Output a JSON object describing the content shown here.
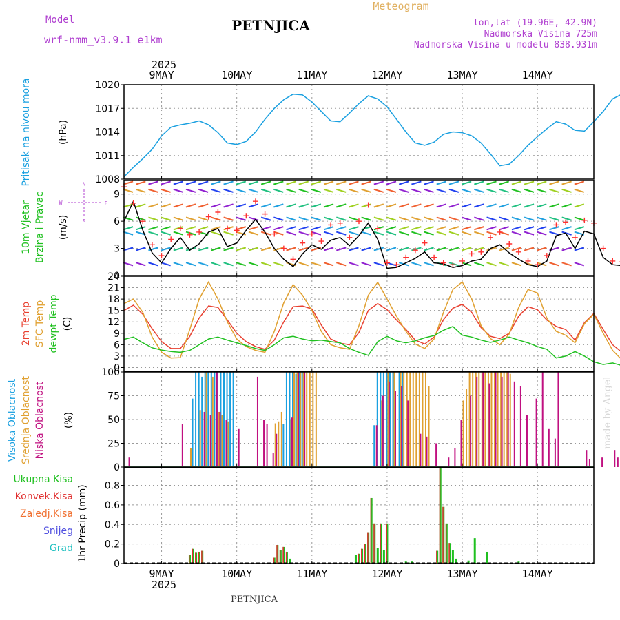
{
  "header": {
    "model_label": "Model",
    "model_name": "wrf-nmm_v3.9.1 e1km",
    "title": "PETNJICA",
    "subtitle": "Meteogram",
    "lonlat": "lon,lat (19.96E, 42.9N)",
    "alt1": "Nadmorska Visina 725m",
    "alt2": "Nadmorska Visina u modelu 838.931m",
    "footer": "PETNJICA",
    "watermark": "made by Angel"
  },
  "colors": {
    "pressure": "#1aa0e0",
    "wind_speed": "#000000",
    "gust": "#ff3030",
    "t2m": "#e84030",
    "sfc": "#e0a030",
    "dewpt": "#20c020",
    "cloud_high": "#1aa0e0",
    "cloud_mid": "#e0a030",
    "cloud_low": "#c01080",
    "rain_total": "#20c020",
    "rain_conv": "#e03030",
    "purple": "#b040d0"
  },
  "dates": {
    "top_year": "2025",
    "bottom_year": "2025",
    "labels": [
      "9MAY",
      "10MAY",
      "11MAY",
      "12MAY",
      "13MAY",
      "14MAY"
    ]
  },
  "compass": {
    "n": "N",
    "s": "S",
    "w": "W",
    "e": "E"
  },
  "chart_data": [
    {
      "type": "line",
      "name": "pressure",
      "ylabel": "Pritisak na nivou mora",
      "unit": "(hPa)",
      "ylim": [
        1008,
        1020
      ],
      "yticks": [
        "1008",
        "1011",
        "1014",
        "1017",
        "1020"
      ],
      "x_start": "2025-05-08 12:00",
      "x_step_hours": 3,
      "series": [
        {
          "values": [
            1008.3,
            1009.5,
            1010.6,
            1011.8,
            1013.5,
            1014.6,
            1014.9,
            1015.1,
            1015.4,
            1014.9,
            1013.9,
            1012.6,
            1012.4,
            1012.8,
            1014.0,
            1015.6,
            1017.0,
            1018.1,
            1018.8,
            1018.7,
            1017.8,
            1016.6,
            1015.4,
            1015.3,
            1016.4,
            1017.6,
            1018.6,
            1018.2,
            1017.2,
            1015.6,
            1014.0,
            1012.6,
            1012.3,
            1012.7,
            1013.7,
            1014.0,
            1013.9,
            1013.5,
            1012.6,
            1011.2,
            1009.7,
            1009.9,
            1011.0,
            1012.3,
            1013.4,
            1014.4,
            1015.3,
            1015.0,
            1014.2,
            1014.1,
            1015.3,
            1016.6,
            1018.2,
            1018.8,
            1019.3,
            1018.4,
            1016.4,
            1014.9
          ]
        }
      ]
    },
    {
      "type": "line",
      "name": "wind",
      "ylabel_lines": [
        "10m Vjetar",
        "Brzina i Pravac"
      ],
      "unit": "(m/s)",
      "ylim": [
        0,
        10.5
      ],
      "yticks": [
        "0",
        "3",
        "6",
        "9"
      ],
      "x_start": "2025-05-08 12:00",
      "x_step_hours": 3,
      "series": [
        {
          "values": [
            6.0,
            8.2,
            5.0,
            2.5,
            1.4,
            3.0,
            4.2,
            2.8,
            3.5,
            4.8,
            5.2,
            3.2,
            3.6,
            5.0,
            6.2,
            4.8,
            3.0,
            1.8,
            1.0,
            2.4,
            3.4,
            2.9,
            3.9,
            4.2,
            3.3,
            4.4,
            5.8,
            4.0,
            0.8,
            0.9,
            1.4,
            1.9,
            2.6,
            1.4,
            1.3,
            0.9,
            1.1,
            1.6,
            1.8,
            3.0,
            3.4,
            2.5,
            1.8,
            1.2,
            1.0,
            1.6,
            4.4,
            4.7,
            3.0,
            4.9,
            4.6,
            2.0,
            1.2,
            1.1,
            1.6,
            1.5,
            1.9,
            1.8
          ]
        },
        {
          "values": [
            9.8,
            8.0,
            6.0,
            3.4,
            2.2,
            4.0,
            5.2,
            4.5,
            4.8,
            6.5,
            7.0,
            5.2,
            5.0,
            6.6,
            8.2,
            6.8,
            4.6,
            3.0,
            1.8,
            3.6,
            4.6,
            3.8,
            5.6,
            5.8,
            4.2,
            6.0,
            7.8,
            5.2,
            1.4,
            1.2,
            2.0,
            2.8,
            3.6,
            2.0,
            1.4,
            1.2,
            1.6,
            2.4,
            2.6,
            4.2,
            4.8,
            3.5,
            2.6,
            1.6,
            1.2,
            2.2,
            5.6,
            5.9,
            4.2,
            6.1,
            5.8,
            3.0,
            1.6,
            1.5,
            2.2,
            2.0,
            2.6,
            2.4
          ]
        }
      ]
    },
    {
      "type": "line",
      "name": "temperature",
      "ylabel_lines": [
        "2m Temp",
        "SFC Temp",
        "dewpt Temp"
      ],
      "unit": "(C)",
      "ylim": [
        -1,
        24
      ],
      "yticks": [
        "0",
        "3",
        "6",
        "9",
        "12",
        "15",
        "18",
        "21",
        "24"
      ],
      "x_start": "2025-05-08 12:00",
      "x_step_hours": 3,
      "series": [
        {
          "values": [
            15.0,
            16.4,
            14.0,
            10.2,
            6.8,
            5.0,
            5.0,
            8.2,
            13.0,
            16.2,
            15.8,
            12.5,
            9.0,
            6.8,
            5.5,
            4.8,
            7.2,
            12.0,
            16.0,
            16.2,
            15.4,
            11.2,
            7.5,
            6.4,
            6.0,
            9.2,
            15.0,
            16.8,
            15.2,
            12.5,
            10.0,
            7.2,
            6.2,
            8.0,
            12.6,
            15.6,
            16.6,
            14.5,
            10.5,
            8.2,
            7.6,
            9.0,
            13.5,
            16.0,
            15.2,
            12.5,
            10.8,
            10.0,
            7.2,
            11.8,
            14.2,
            10.0,
            6.0,
            4.0,
            6.5,
            10.8,
            13.5,
            14.7
          ]
        },
        {
          "values": [
            16.8,
            18.0,
            14.5,
            8.0,
            4.0,
            2.5,
            2.6,
            10.0,
            18.0,
            22.5,
            18.0,
            12.0,
            7.5,
            5.5,
            4.5,
            4.0,
            9.5,
            17.0,
            21.8,
            19.0,
            15.0,
            9.5,
            6.0,
            5.2,
            4.8,
            11.0,
            19.0,
            22.4,
            18.0,
            13.5,
            9.5,
            6.2,
            5.0,
            7.5,
            14.5,
            20.5,
            22.5,
            18.0,
            11.0,
            7.6,
            6.0,
            8.8,
            15.8,
            20.5,
            19.6,
            13.0,
            9.5,
            8.5,
            6.5,
            11.5,
            14.0,
            9.0,
            4.5,
            2.0,
            6.0,
            12.5,
            17.0,
            19.5
          ]
        },
        {
          "values": [
            7.4,
            8.0,
            6.5,
            5.2,
            4.6,
            4.2,
            4.0,
            4.5,
            6.0,
            7.5,
            8.0,
            7.2,
            6.5,
            5.8,
            5.0,
            4.5,
            6.0,
            7.8,
            8.2,
            7.5,
            7.0,
            7.2,
            6.8,
            6.5,
            5.0,
            4.0,
            3.2,
            6.8,
            8.2,
            7.0,
            6.5,
            7.0,
            7.8,
            8.4,
            9.8,
            10.8,
            8.5,
            8.0,
            7.2,
            6.6,
            7.2,
            8.0,
            7.2,
            6.5,
            5.5,
            4.8,
            2.5,
            3.0,
            4.2,
            3.0,
            1.5,
            0.8,
            1.2,
            0.5,
            2.5,
            3.5,
            0.8,
            1.4
          ]
        }
      ]
    },
    {
      "type": "bar",
      "name": "clouds",
      "ylabel_lines": [
        "Visoka Oblacnost",
        "Srednja Oblacnost",
        "Niska Oblacnost"
      ],
      "unit": "(%)",
      "ylim": [
        0,
        100
      ],
      "yticks": [
        "0",
        "25",
        "50",
        "75",
        "100"
      ],
      "x_start": "2025-05-08 12:00",
      "x_step_hours": 1,
      "high": [
        [
          22,
          72
        ],
        [
          23,
          100
        ],
        [
          24,
          100
        ],
        [
          25,
          95
        ],
        [
          26,
          100
        ],
        [
          27,
          100
        ],
        [
          28,
          100
        ],
        [
          29,
          100
        ],
        [
          30,
          100
        ],
        [
          31,
          100
        ],
        [
          32,
          100
        ],
        [
          33,
          100
        ],
        [
          34,
          100
        ],
        [
          35,
          100
        ],
        [
          51,
          45
        ],
        [
          52,
          100
        ],
        [
          53,
          100
        ],
        [
          54,
          100
        ],
        [
          55,
          98
        ],
        [
          56,
          100
        ],
        [
          57,
          100
        ],
        [
          80,
          44
        ],
        [
          81,
          100
        ],
        [
          82,
          100
        ],
        [
          83,
          100
        ],
        [
          84,
          100
        ],
        [
          85,
          100
        ],
        [
          86,
          100
        ],
        [
          88,
          100
        ],
        [
          89,
          100
        ]
      ],
      "mid": [
        [
          21,
          20
        ],
        [
          24,
          60
        ],
        [
          26,
          100
        ],
        [
          28,
          95
        ],
        [
          30,
          58
        ],
        [
          31,
          55
        ],
        [
          33,
          48
        ],
        [
          48,
          46
        ],
        [
          49,
          48
        ],
        [
          50,
          58
        ],
        [
          53,
          50
        ],
        [
          54,
          100
        ],
        [
          55,
          100
        ],
        [
          56,
          100
        ],
        [
          57,
          100
        ],
        [
          58,
          100
        ],
        [
          59,
          100
        ],
        [
          60,
          100
        ],
        [
          61,
          100
        ],
        [
          82,
          70
        ],
        [
          84,
          100
        ],
        [
          86,
          100
        ],
        [
          88,
          100
        ],
        [
          89,
          100
        ],
        [
          90,
          100
        ],
        [
          91,
          100
        ],
        [
          92,
          100
        ],
        [
          93,
          100
        ],
        [
          94,
          100
        ],
        [
          95,
          100
        ],
        [
          96,
          100
        ],
        [
          97,
          85
        ],
        [
          108,
          70
        ],
        [
          109,
          82
        ],
        [
          110,
          100
        ],
        [
          111,
          100
        ],
        [
          112,
          100
        ],
        [
          113,
          100
        ],
        [
          114,
          100
        ],
        [
          115,
          100
        ],
        [
          116,
          100
        ],
        [
          117,
          100
        ],
        [
          118,
          100
        ],
        [
          119,
          100
        ],
        [
          120,
          100
        ],
        [
          121,
          100
        ],
        [
          122,
          100
        ],
        [
          123,
          98
        ]
      ],
      "low": [
        [
          1,
          10
        ],
        [
          18,
          45
        ],
        [
          25,
          58
        ],
        [
          27,
          55
        ],
        [
          29,
          100
        ],
        [
          30,
          58
        ],
        [
          32,
          50
        ],
        [
          36,
          40
        ],
        [
          42,
          95
        ],
        [
          44,
          50
        ],
        [
          45,
          45
        ],
        [
          47,
          15
        ],
        [
          48,
          35
        ],
        [
          53,
          52
        ],
        [
          55,
          100
        ],
        [
          57,
          100
        ],
        [
          80,
          44
        ],
        [
          82,
          75
        ],
        [
          84,
          90
        ],
        [
          86,
          80
        ],
        [
          88,
          85
        ],
        [
          90,
          70
        ],
        [
          94,
          35
        ],
        [
          96,
          32
        ],
        [
          99,
          25
        ],
        [
          103,
          10
        ],
        [
          105,
          20
        ],
        [
          107,
          50
        ],
        [
          110,
          75
        ],
        [
          112,
          95
        ],
        [
          114,
          100
        ],
        [
          116,
          88
        ],
        [
          118,
          100
        ],
        [
          120,
          95
        ],
        [
          122,
          100
        ],
        [
          124,
          90
        ],
        [
          126,
          85
        ],
        [
          128,
          55
        ],
        [
          131,
          72
        ],
        [
          133,
          100
        ],
        [
          135,
          40
        ],
        [
          137,
          30
        ],
        [
          138,
          100
        ],
        [
          147,
          18
        ],
        [
          148,
          8
        ],
        [
          152,
          10
        ],
        [
          156,
          18
        ],
        [
          157,
          10
        ],
        [
          158,
          5
        ]
      ]
    },
    {
      "type": "bar",
      "name": "precipitation",
      "legend": [
        "Ukupna Kisa",
        "Konvek.Kisa",
        "Zaledj.Kisa",
        "Snijeg",
        "Grad"
      ],
      "unit": "1hr Precip (mm)",
      "ylim": [
        0,
        0.98
      ],
      "yticks": [
        "0",
        "0.2",
        "0.4",
        "0.6",
        "0.8"
      ],
      "x_start": "2025-05-08 12:00",
      "x_step_hours": 1,
      "total": [
        [
          21,
          0.09
        ],
        [
          22,
          0.15
        ],
        [
          23,
          0.11
        ],
        [
          24,
          0.12
        ],
        [
          25,
          0.13
        ],
        [
          48,
          0.06
        ],
        [
          49,
          0.19
        ],
        [
          50,
          0.14
        ],
        [
          51,
          0.17
        ],
        [
          52,
          0.12
        ],
        [
          53,
          0.05
        ],
        [
          74,
          0.09
        ],
        [
          75,
          0.1
        ],
        [
          76,
          0.15
        ],
        [
          77,
          0.2
        ],
        [
          78,
          0.32
        ],
        [
          79,
          0.67
        ],
        [
          80,
          0.41
        ],
        [
          81,
          0.16
        ],
        [
          82,
          0.41
        ],
        [
          83,
          0.14
        ],
        [
          84,
          0.41
        ],
        [
          90,
          0.02
        ],
        [
          91,
          0.01
        ],
        [
          92,
          0.02
        ],
        [
          100,
          0.13
        ],
        [
          101,
          0.98
        ],
        [
          102,
          0.58
        ],
        [
          103,
          0.41
        ],
        [
          104,
          0.21
        ],
        [
          105,
          0.14
        ],
        [
          106,
          0.05
        ],
        [
          110,
          0.03
        ],
        [
          112,
          0.26
        ],
        [
          113,
          0.01
        ],
        [
          116,
          0.12
        ],
        [
          126,
          0.02
        ]
      ],
      "convective": [
        [
          21,
          0.09
        ],
        [
          22,
          0.15
        ],
        [
          23,
          0.11
        ],
        [
          24,
          0.12
        ],
        [
          25,
          0.13
        ],
        [
          48,
          0.06
        ],
        [
          49,
          0.19
        ],
        [
          50,
          0.14
        ],
        [
          51,
          0.17
        ],
        [
          52,
          0.12
        ],
        [
          75,
          0.1
        ],
        [
          76,
          0.15
        ],
        [
          77,
          0.2
        ],
        [
          78,
          0.32
        ],
        [
          79,
          0.67
        ],
        [
          80,
          0.41
        ],
        [
          82,
          0.41
        ],
        [
          84,
          0.41
        ],
        [
          100,
          0.13
        ],
        [
          101,
          0.98
        ],
        [
          102,
          0.58
        ],
        [
          103,
          0.41
        ],
        [
          104,
          0.21
        ]
      ]
    }
  ]
}
